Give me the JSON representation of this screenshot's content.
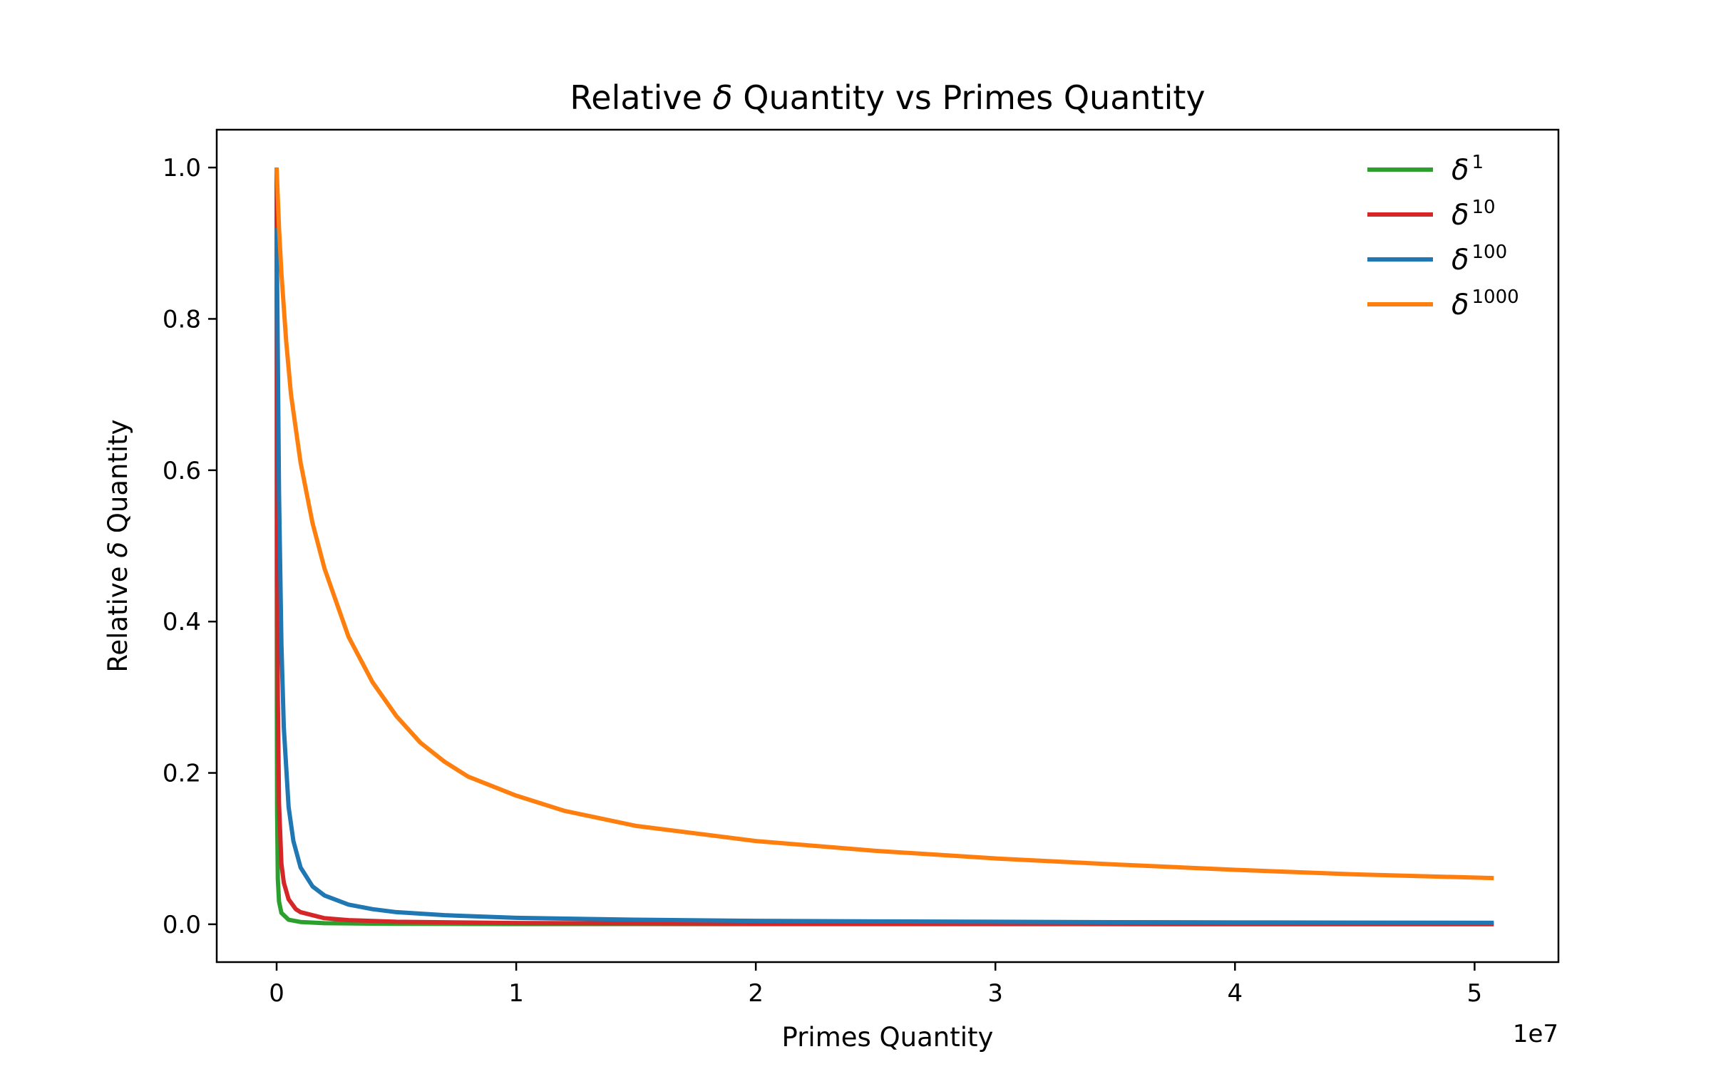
{
  "chart_data": {
    "type": "line",
    "title_parts": [
      "Relative ",
      "δ",
      " Quantity vs Primes Quantity"
    ],
    "xlabel": "Primes Quantity",
    "ylabel_parts": [
      "Relative ",
      "δ",
      " Quantity"
    ],
    "x_offset_label": "1e7",
    "x_scale": 10000000,
    "xlim": [
      -2500000,
      53500000
    ],
    "ylim": [
      -0.05,
      1.05
    ],
    "x_ticks": [
      {
        "value": 0,
        "label": "0"
      },
      {
        "value": 10000000,
        "label": "1"
      },
      {
        "value": 20000000,
        "label": "2"
      },
      {
        "value": 30000000,
        "label": "3"
      },
      {
        "value": 40000000,
        "label": "4"
      },
      {
        "value": 50000000,
        "label": "5"
      }
    ],
    "y_ticks": [
      {
        "value": 0.0,
        "label": "0.0"
      },
      {
        "value": 0.2,
        "label": "0.2"
      },
      {
        "value": 0.4,
        "label": "0.4"
      },
      {
        "value": 0.6,
        "label": "0.6"
      },
      {
        "value": 0.8,
        "label": "0.8"
      },
      {
        "value": 1.0,
        "label": "1.0"
      }
    ],
    "grid": false,
    "legend_position": "top-right",
    "series": [
      {
        "name": "δ",
        "superscript": "1",
        "color": "#2ca02c",
        "x": [
          0,
          5000,
          10000,
          20000,
          50000,
          100000,
          200000,
          500000,
          1000000,
          2000000,
          5000000,
          10000000,
          20000000,
          30000000,
          40000000,
          50800000
        ],
        "y": [
          1.0,
          0.45,
          0.28,
          0.15,
          0.06,
          0.03,
          0.015,
          0.006,
          0.003,
          0.0015,
          0.0006,
          0.0003,
          0.00015,
          0.0001,
          8e-05,
          6e-05
        ]
      },
      {
        "name": "δ",
        "superscript": "10",
        "color": "#d62728",
        "x": [
          0,
          20000,
          50000,
          100000,
          200000,
          300000,
          500000,
          800000,
          1000000,
          2000000,
          3000000,
          5000000,
          10000000,
          20000000,
          30000000,
          40000000,
          50800000
        ],
        "y": [
          1.0,
          0.55,
          0.3,
          0.16,
          0.08,
          0.055,
          0.033,
          0.02,
          0.016,
          0.008,
          0.0055,
          0.0033,
          0.0017,
          0.0009,
          0.0006,
          0.0005,
          0.0004
        ]
      },
      {
        "name": "δ",
        "superscript": "100",
        "color": "#1f77b4",
        "x": [
          0,
          50000,
          100000,
          200000,
          300000,
          500000,
          700000,
          1000000,
          1500000,
          2000000,
          3000000,
          4000000,
          5000000,
          7000000,
          10000000,
          15000000,
          20000000,
          25000000,
          30000000,
          35000000,
          40000000,
          45000000,
          50800000
        ],
        "y": [
          0.92,
          0.75,
          0.57,
          0.37,
          0.26,
          0.155,
          0.11,
          0.075,
          0.05,
          0.038,
          0.026,
          0.02,
          0.016,
          0.012,
          0.0085,
          0.006,
          0.0045,
          0.0038,
          0.0033,
          0.0028,
          0.0024,
          0.0022,
          0.0019
        ]
      },
      {
        "name": "δ",
        "superscript": "1000",
        "color": "#ff7f0e",
        "x": [
          0,
          50000,
          100000,
          200000,
          400000,
          600000,
          1000000,
          1500000,
          2000000,
          3000000,
          4000000,
          5000000,
          6000000,
          7000000,
          8000000,
          10000000,
          12000000,
          15000000,
          20000000,
          25000000,
          30000000,
          35000000,
          40000000,
          45000000,
          50800000
        ],
        "y": [
          1.0,
          0.96,
          0.92,
          0.86,
          0.77,
          0.7,
          0.61,
          0.53,
          0.47,
          0.38,
          0.32,
          0.275,
          0.24,
          0.215,
          0.195,
          0.17,
          0.15,
          0.13,
          0.11,
          0.097,
          0.087,
          0.079,
          0.072,
          0.066,
          0.061
        ]
      }
    ]
  }
}
